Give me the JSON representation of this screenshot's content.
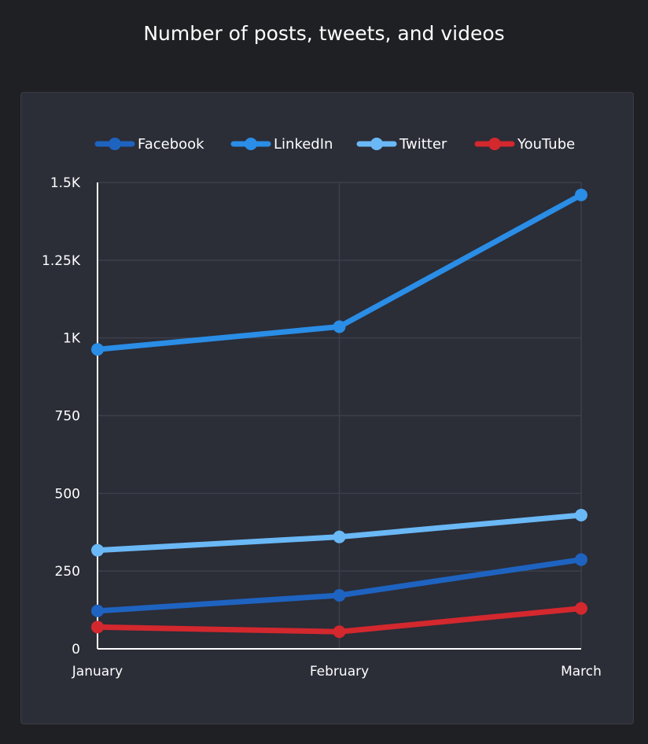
{
  "chart_data": {
    "type": "line",
    "title": "Number of posts, tweets, and videos",
    "xlabel": "",
    "ylabel": "",
    "categories": [
      "January",
      "February",
      "March"
    ],
    "ylim": [
      0,
      1500
    ],
    "yticks": [
      0,
      250,
      500,
      750,
      1000,
      1250,
      1500
    ],
    "ytick_labels": [
      "0",
      "250",
      "500",
      "750",
      "1K",
      "1.25K",
      "1.5K"
    ],
    "grid": true,
    "legend_position": "top",
    "series": [
      {
        "name": "Facebook",
        "values": [
          122,
          172,
          287
        ],
        "color": "#1e63c0"
      },
      {
        "name": "LinkedIn",
        "values": [
          963,
          1036,
          1460
        ],
        "color": "#2a8de6"
      },
      {
        "name": "Twitter",
        "values": [
          317,
          360,
          430
        ],
        "color": "#6ab8f5"
      },
      {
        "name": "YouTube",
        "values": [
          70,
          55,
          130
        ],
        "color": "#d3282e"
      }
    ]
  }
}
